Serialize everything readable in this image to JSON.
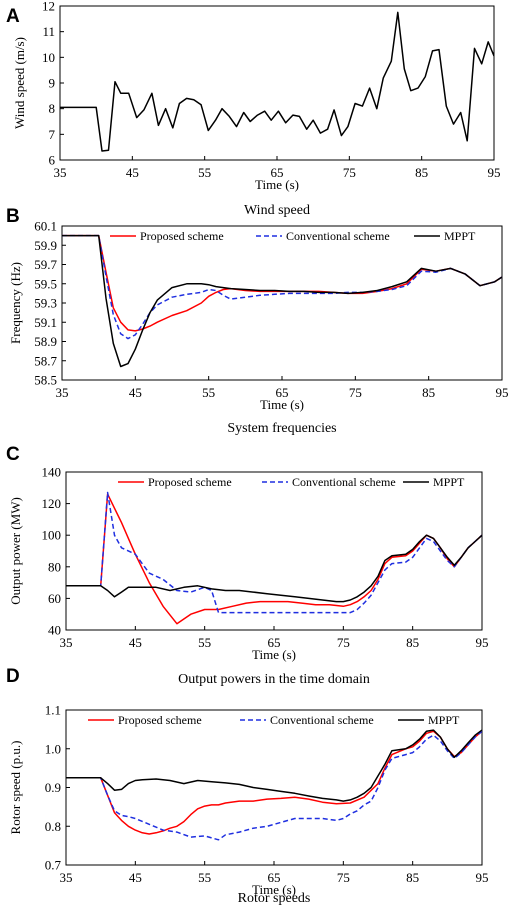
{
  "colors": {
    "proposed": "#ff0000",
    "conventional": "#1f2fe0",
    "mppt": "#000000"
  },
  "chart_data": [
    {
      "panel_letter": "A",
      "type": "line",
      "title": "",
      "caption": "Wind speed",
      "xlabel": "Time (s)",
      "ylabel": "Wind speed (m/s)",
      "xlim": [
        35,
        95
      ],
      "ylim": [
        6,
        12
      ],
      "xticks": [
        "35",
        "45",
        "55",
        "65",
        "75",
        "85",
        "95"
      ],
      "yticks": [
        "6",
        "7",
        "8",
        "9",
        "10",
        "11",
        "12"
      ],
      "legend": "none",
      "series": [
        {
          "color_key": "mppt",
          "dash": "solid",
          "x": [
            35,
            40,
            40.8,
            41.7,
            42.6,
            43.4,
            44.5,
            45.6,
            46.6,
            47.7,
            48.6,
            49.6,
            50.6,
            51.5,
            52.5,
            53.5,
            54.5,
            55.5,
            56.5,
            57.4,
            58.4,
            59.4,
            60.4,
            61.3,
            62.3,
            63.3,
            64.2,
            65.2,
            66.2,
            67.2,
            68.1,
            69.1,
            70,
            71,
            72,
            72.9,
            73.9,
            74.8,
            75.8,
            76.8,
            77.8,
            78.8,
            79.7,
            80.8,
            81.7,
            82.6,
            83.5,
            84.5,
            85.5,
            86.5,
            87.4,
            88.4,
            89.4,
            90.4,
            91.3,
            92.3,
            93.3,
            94.2,
            95
          ],
          "y": [
            8.05,
            8.05,
            6.35,
            6.38,
            9.05,
            8.6,
            8.6,
            7.65,
            7.95,
            8.6,
            7.35,
            8.0,
            7.25,
            8.2,
            8.4,
            8.35,
            8.15,
            7.15,
            7.55,
            8.0,
            7.7,
            7.3,
            7.85,
            7.5,
            7.75,
            7.9,
            7.55,
            7.9,
            7.45,
            7.75,
            7.7,
            7.2,
            7.55,
            7.05,
            7.2,
            7.95,
            6.95,
            7.3,
            8.2,
            8.1,
            8.8,
            8.0,
            9.2,
            9.85,
            11.75,
            9.55,
            8.7,
            8.8,
            9.25,
            10.25,
            10.3,
            8.1,
            7.4,
            7.85,
            6.75,
            10.35,
            9.75,
            10.6,
            10.05
          ]
        }
      ]
    },
    {
      "panel_letter": "B",
      "type": "line",
      "title": "",
      "caption": "System frequencies",
      "xlabel": "Time (s)",
      "ylabel": "Frequency (Hz)",
      "xlim": [
        35,
        95
      ],
      "ylim": [
        58.5,
        60.1
      ],
      "xticks": [
        "35",
        "45",
        "55",
        "65",
        "75",
        "85",
        "95"
      ],
      "yticks": [
        "58.5",
        "58.7",
        "58.9",
        "59.1",
        "59.3",
        "59.5",
        "59.7",
        "59.9",
        "60.1"
      ],
      "legend": "top",
      "series": [
        {
          "name": "Proposed scheme",
          "color_key": "proposed",
          "dash": "solid",
          "x": [
            35,
            40,
            41,
            42,
            43,
            44,
            45,
            46,
            47,
            48,
            50,
            52,
            54,
            55,
            56,
            57,
            58,
            60,
            62,
            64,
            66,
            68,
            70,
            72,
            74,
            76,
            78,
            80,
            82,
            84,
            86,
            88,
            90,
            92,
            94,
            95
          ],
          "y": [
            60.0,
            60.0,
            59.62,
            59.25,
            59.1,
            59.02,
            59.01,
            59.03,
            59.06,
            59.1,
            59.17,
            59.22,
            59.3,
            59.37,
            59.41,
            59.44,
            59.45,
            59.43,
            59.42,
            59.42,
            59.42,
            59.42,
            59.42,
            59.41,
            59.4,
            59.4,
            59.42,
            59.45,
            59.5,
            59.65,
            59.63,
            59.66,
            59.6,
            59.48,
            59.52,
            59.57
          ]
        },
        {
          "name": "Conventional scheme",
          "color_key": "conventional",
          "dash": "dashed",
          "x": [
            35,
            40,
            41,
            42,
            43,
            44,
            45,
            46,
            47,
            48,
            50,
            52,
            54,
            55,
            56,
            57,
            58,
            60,
            62,
            64,
            66,
            68,
            70,
            72,
            74,
            76,
            78,
            80,
            82,
            84,
            86,
            88,
            90,
            92,
            94,
            95
          ],
          "y": [
            60.0,
            60.0,
            59.58,
            59.18,
            58.98,
            58.93,
            58.97,
            59.08,
            59.2,
            59.28,
            59.36,
            59.39,
            59.41,
            59.44,
            59.43,
            59.38,
            59.34,
            59.36,
            59.38,
            59.39,
            59.4,
            59.4,
            59.4,
            59.4,
            59.41,
            59.41,
            59.42,
            59.44,
            59.48,
            59.63,
            59.62,
            59.66,
            59.6,
            59.48,
            59.52,
            59.57
          ]
        },
        {
          "name": "MPPT",
          "color_key": "mppt",
          "dash": "solid",
          "x": [
            35,
            40,
            41,
            42,
            43,
            44,
            45,
            46,
            47,
            48,
            50,
            52,
            54,
            55,
            56,
            57,
            58,
            60,
            62,
            64,
            66,
            68,
            70,
            72,
            74,
            76,
            78,
            80,
            82,
            84,
            86,
            88,
            90,
            92,
            94,
            95
          ],
          "y": [
            60.0,
            60.0,
            59.35,
            58.88,
            58.64,
            58.67,
            58.82,
            59.02,
            59.2,
            59.33,
            59.46,
            59.5,
            59.5,
            59.49,
            59.47,
            59.46,
            59.45,
            59.44,
            59.43,
            59.43,
            59.42,
            59.42,
            59.41,
            59.41,
            59.4,
            59.41,
            59.43,
            59.47,
            59.52,
            59.66,
            59.63,
            59.66,
            59.6,
            59.48,
            59.52,
            59.57
          ]
        }
      ]
    },
    {
      "panel_letter": "C",
      "type": "line",
      "title": "",
      "caption": "Output powers in the time domain",
      "xlabel": "Time (s)",
      "ylabel": "Output power (MW)",
      "xlim": [
        35,
        95
      ],
      "ylim": [
        40,
        140
      ],
      "xticks": [
        "35",
        "45",
        "55",
        "65",
        "75",
        "85",
        "95"
      ],
      "yticks": [
        "40",
        "60",
        "80",
        "100",
        "120",
        "140"
      ],
      "legend": "top",
      "series": [
        {
          "name": "Proposed scheme",
          "color_key": "proposed",
          "dash": "solid",
          "x": [
            35,
            40,
            41,
            43,
            45,
            47,
            49,
            51,
            53,
            55,
            57,
            59,
            61,
            63,
            65,
            67,
            69,
            71,
            73,
            75,
            76,
            77,
            78,
            79,
            80,
            81,
            82,
            84,
            85,
            86,
            87,
            88,
            89,
            90,
            91,
            92,
            93,
            94,
            95
          ],
          "y": [
            68,
            68,
            126,
            108,
            88,
            70,
            55,
            44,
            50,
            53,
            53,
            55,
            57,
            58,
            58,
            58,
            57,
            56,
            56,
            55,
            56,
            58,
            61,
            65,
            72,
            82,
            86,
            87,
            90,
            95,
            100,
            98,
            92,
            85,
            80,
            86,
            92,
            96,
            100
          ]
        },
        {
          "name": "Conventional scheme",
          "color_key": "conventional",
          "dash": "dashed",
          "x": [
            35,
            40,
            41,
            42,
            43,
            45,
            47,
            49,
            51,
            53,
            55,
            56,
            57,
            58,
            61,
            65,
            69,
            73,
            75,
            76,
            77,
            78,
            79,
            80,
            81,
            82,
            84,
            85,
            86,
            87,
            88,
            89,
            90,
            91,
            92,
            93,
            94,
            95
          ],
          "y": [
            68,
            68,
            127,
            100,
            92,
            88,
            76,
            72,
            65,
            64,
            67,
            65,
            51,
            51,
            51,
            51,
            51,
            51,
            51,
            51,
            53,
            57,
            62,
            70,
            78,
            82,
            83,
            86,
            92,
            98,
            96,
            90,
            84,
            80,
            86,
            92,
            96,
            100
          ]
        },
        {
          "name": "MPPT",
          "color_key": "mppt",
          "dash": "solid",
          "x": [
            35,
            40,
            41,
            42,
            43,
            44,
            46,
            48,
            50,
            52,
            54,
            56,
            58,
            60,
            62,
            64,
            66,
            68,
            70,
            72,
            74,
            75,
            76,
            77,
            78,
            79,
            80,
            81,
            82,
            84,
            85,
            86,
            87,
            88,
            89,
            90,
            91,
            92,
            93,
            94,
            95
          ],
          "y": [
            68,
            68,
            65,
            61,
            64,
            67,
            67,
            67,
            65,
            67,
            68,
            66,
            65,
            65,
            64,
            63,
            62,
            61,
            60,
            59,
            58,
            58,
            59,
            61,
            64,
            68,
            74,
            84,
            87,
            88,
            91,
            96,
            100,
            98,
            92,
            86,
            81,
            86,
            92,
            96,
            100
          ]
        }
      ]
    },
    {
      "panel_letter": "D",
      "type": "line",
      "title": "",
      "caption": "Rotor speeds",
      "xlabel": "Time (s)",
      "ylabel": "Rotor speed (p.u.)",
      "xlim": [
        35,
        95
      ],
      "ylim": [
        0.7,
        1.1
      ],
      "xticks": [
        "35",
        "45",
        "55",
        "65",
        "75",
        "85",
        "95"
      ],
      "yticks": [
        "0.7",
        "0.8",
        "0.9",
        "1.0",
        "1.1"
      ],
      "legend": "top",
      "series": [
        {
          "name": "Proposed scheme",
          "color_key": "proposed",
          "dash": "solid",
          "x": [
            35,
            40,
            41,
            42,
            43,
            44,
            45,
            46,
            47,
            48,
            49,
            50,
            51,
            52,
            53,
            54,
            55,
            56,
            57,
            58,
            60,
            62,
            64,
            66,
            68,
            70,
            72,
            74,
            76,
            78,
            80,
            81,
            82,
            84,
            85,
            86,
            87,
            88,
            89,
            90,
            91,
            92,
            93,
            94,
            95
          ],
          "y": [
            0.925,
            0.925,
            0.88,
            0.835,
            0.815,
            0.8,
            0.79,
            0.783,
            0.78,
            0.783,
            0.788,
            0.795,
            0.8,
            0.812,
            0.83,
            0.845,
            0.852,
            0.855,
            0.855,
            0.86,
            0.865,
            0.865,
            0.87,
            0.872,
            0.875,
            0.87,
            0.862,
            0.858,
            0.86,
            0.875,
            0.91,
            0.95,
            0.985,
            1.0,
            1.005,
            1.02,
            1.04,
            1.045,
            1.03,
            1.0,
            0.98,
            0.99,
            1.01,
            1.03,
            1.045
          ]
        },
        {
          "name": "Conventional scheme",
          "color_key": "conventional",
          "dash": "dashed",
          "x": [
            35,
            40,
            41,
            42,
            43,
            44,
            45,
            47,
            49,
            51,
            53,
            55,
            56,
            57,
            58,
            60,
            62,
            64,
            66,
            68,
            70,
            72,
            74,
            75,
            76,
            77,
            78,
            79,
            80,
            81,
            82,
            84,
            85,
            86,
            87,
            88,
            89,
            90,
            91,
            92,
            93,
            94,
            95
          ],
          "y": [
            0.925,
            0.925,
            0.88,
            0.84,
            0.828,
            0.825,
            0.82,
            0.805,
            0.79,
            0.785,
            0.772,
            0.775,
            0.77,
            0.765,
            0.778,
            0.785,
            0.795,
            0.8,
            0.81,
            0.82,
            0.82,
            0.82,
            0.815,
            0.82,
            0.832,
            0.84,
            0.855,
            0.865,
            0.9,
            0.945,
            0.975,
            0.985,
            0.99,
            1.005,
            1.025,
            1.035,
            1.02,
            0.995,
            0.975,
            0.99,
            1.01,
            1.03,
            1.045
          ]
        },
        {
          "name": "MPPT",
          "color_key": "mppt",
          "dash": "solid",
          "x": [
            35,
            40,
            41,
            42,
            43,
            44,
            45,
            46,
            48,
            50,
            52,
            54,
            56,
            58,
            60,
            62,
            64,
            66,
            68,
            70,
            72,
            74,
            75,
            76,
            77,
            78,
            79,
            80,
            81,
            82,
            84,
            85,
            86,
            87,
            88,
            89,
            90,
            91,
            92,
            93,
            94,
            95
          ],
          "y": [
            0.925,
            0.925,
            0.91,
            0.893,
            0.895,
            0.91,
            0.918,
            0.92,
            0.922,
            0.918,
            0.91,
            0.918,
            0.915,
            0.912,
            0.908,
            0.9,
            0.895,
            0.89,
            0.885,
            0.878,
            0.872,
            0.868,
            0.865,
            0.868,
            0.875,
            0.885,
            0.9,
            0.93,
            0.96,
            0.995,
            1.0,
            1.01,
            1.025,
            1.045,
            1.048,
            1.03,
            1.0,
            0.978,
            0.995,
            1.015,
            1.035,
            1.048
          ]
        }
      ]
    }
  ]
}
